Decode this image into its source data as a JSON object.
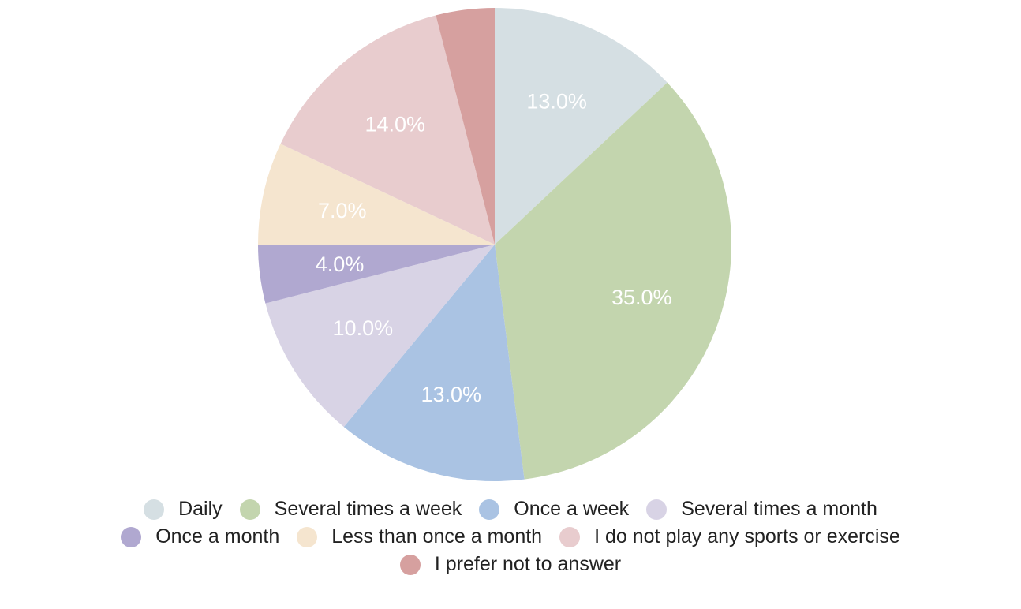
{
  "chart_data": {
    "type": "pie",
    "title": "",
    "start_angle_deg": 0,
    "direction": "clockwise",
    "slices": [
      {
        "name": "Daily",
        "value": 13.0,
        "label": "13.0%",
        "color": "#d5dfe3"
      },
      {
        "name": "Several times a week",
        "value": 35.0,
        "label": "35.0%",
        "color": "#c3d5ae"
      },
      {
        "name": "Once a week",
        "value": 13.0,
        "label": "13.0%",
        "color": "#aac3e3"
      },
      {
        "name": "Several times a month",
        "value": 10.0,
        "label": "10.0%",
        "color": "#d8d3e5"
      },
      {
        "name": "Once a month",
        "value": 4.0,
        "label": "4.0%",
        "color": "#b0a8d0"
      },
      {
        "name": "Less than once a month",
        "value": 7.0,
        "label": "7.0%",
        "color": "#f5e5cf"
      },
      {
        "name": "I do not play any sports or exercise",
        "value": 14.0,
        "label": "14.0%",
        "color": "#e8ccce"
      },
      {
        "name": "I prefer not to answer",
        "value": 4.0,
        "label": "",
        "color": "#d6a09f"
      }
    ],
    "legend_placement": "bottom",
    "legend_rows": [
      [
        "Daily",
        "Several times a week",
        "Once a week",
        "Several times a month"
      ],
      [
        "Once a month",
        "Less than once a month",
        "I do not play any sports or exercise"
      ],
      [
        "I prefer not to answer"
      ]
    ]
  }
}
